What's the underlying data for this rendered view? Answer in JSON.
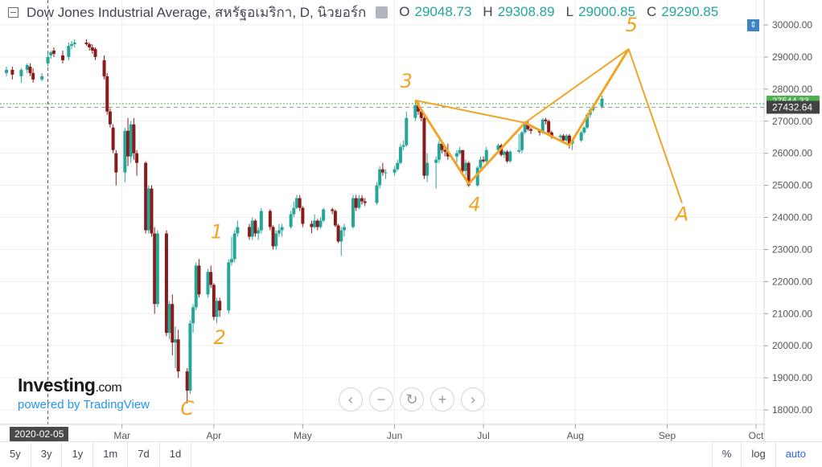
{
  "legend": {
    "title": "Dow Jones Industrial Average, สหรัฐอเมริกา, D, นิวยอร์ก",
    "open_key": "O",
    "open": "29048.73",
    "high_key": "H",
    "high": "29308.89",
    "low_key": "L",
    "low": "29000.85",
    "close_key": "C",
    "close": "29290.85"
  },
  "colors": {
    "up": "#26a69a",
    "down": "#8b1a1a",
    "drawing": "#f0a526",
    "axis_text": "#555555",
    "grid": "#eeeeee",
    "hline": "#4caf50",
    "dash": "#9e9e9e"
  },
  "price_badges": {
    "last": "27432.64",
    "hline": "27544.33"
  },
  "crosshair_date": "2020-02-05",
  "periods": [
    "5y",
    "3y",
    "1y",
    "1m",
    "7d",
    "1d"
  ],
  "bottom_right": {
    "percent": "%",
    "log": "log",
    "auto": "auto"
  },
  "nav_icons": [
    "chevron-left-icon",
    "zoom-out-icon",
    "reset-icon",
    "zoom-in-icon",
    "chevron-right-icon"
  ],
  "logo": {
    "brand": "Investing",
    "suffix": ".com",
    "powered": "powered by TradingView"
  },
  "chart_data": {
    "type": "candlestick",
    "y_ticks": [
      30000,
      29000,
      28000,
      27000,
      26000,
      25000,
      24000,
      23000,
      22000,
      21000,
      20000,
      19000,
      18000
    ],
    "y_tick_labels": [
      "30000.00",
      "29000.00",
      "28000.00",
      "27000.00",
      "26000.00",
      "25000.00",
      "24000.00",
      "23000.00",
      "22000.00",
      "21000.00",
      "20000.00",
      "19000.00",
      "18000.00"
    ],
    "ylim": [
      17500,
      30450
    ],
    "x_labels": [
      "Mar",
      "Apr",
      "May",
      "Jun",
      "Jul",
      "Aug",
      "Sep",
      "Oct"
    ],
    "x_label_dates": [
      "2020-03-01",
      "2020-04-01",
      "2020-05-01",
      "2020-06-01",
      "2020-07-01",
      "2020-08-01",
      "2020-09-01",
      "2020-10-01"
    ],
    "candles": [
      [
        "2020-01-22",
        28500,
        28700,
        28400,
        28600
      ],
      [
        "2020-01-24",
        28600,
        28700,
        28300,
        28450
      ],
      [
        "2020-01-27",
        28400,
        28650,
        28200,
        28600
      ],
      [
        "2020-01-29",
        28600,
        28800,
        28500,
        28750
      ],
      [
        "2020-01-30",
        28700,
        28800,
        28400,
        28500
      ],
      [
        "2020-01-31",
        28500,
        28650,
        28200,
        28300
      ],
      [
        "2020-02-03",
        28300,
        28500,
        28250,
        28400
      ],
      [
        "2020-02-05",
        28800,
        29100,
        28700,
        29000
      ],
      [
        "2020-02-06",
        29050,
        29200,
        28950,
        29150
      ],
      [
        "2020-02-07",
        29200,
        29300,
        29000,
        29100
      ],
      [
        "2020-02-10",
        29050,
        29200,
        28800,
        28900
      ],
      [
        "2020-02-12",
        29000,
        29450,
        28900,
        29350
      ],
      [
        "2020-02-13",
        29350,
        29500,
        29250,
        29400
      ],
      [
        "2020-02-14",
        29400,
        29550,
        29300,
        29450
      ],
      [
        "2020-02-18",
        29450,
        29550,
        29350,
        29400
      ],
      [
        "2020-02-19",
        29400,
        29450,
        29200,
        29300
      ],
      [
        "2020-02-20",
        29300,
        29400,
        29100,
        29200
      ],
      [
        "2020-02-21",
        29250,
        29300,
        28900,
        29000
      ],
      [
        "2020-02-24",
        28900,
        29050,
        28300,
        28400
      ],
      [
        "2020-02-25",
        28400,
        28500,
        27200,
        27300
      ],
      [
        "2020-02-26",
        27300,
        27400,
        26800,
        26900
      ],
      [
        "2020-02-27",
        26800,
        26900,
        26000,
        26100
      ],
      [
        "2020-02-28",
        26000,
        26100,
        25000,
        25400
      ],
      [
        "2020-03-02",
        25400,
        26800,
        25100,
        26700
      ],
      [
        "2020-03-03",
        26700,
        27100,
        25600,
        25900
      ],
      [
        "2020-03-04",
        25900,
        27000,
        25700,
        26900
      ],
      [
        "2020-03-05",
        26900,
        27100,
        25800,
        26000
      ],
      [
        "2020-03-06",
        26000,
        26100,
        25300,
        25700
      ],
      [
        "2020-03-09",
        25700,
        25750,
        23500,
        23600
      ],
      [
        "2020-03-10",
        23600,
        25000,
        23500,
        24900
      ],
      [
        "2020-03-11",
        24900,
        25000,
        23400,
        23500
      ],
      [
        "2020-03-12",
        23500,
        23700,
        21000,
        21300
      ],
      [
        "2020-03-13",
        21300,
        23600,
        21200,
        23500
      ],
      [
        "2020-03-16",
        23500,
        23600,
        20300,
        20400
      ],
      [
        "2020-03-17",
        20400,
        21400,
        20200,
        21300
      ],
      [
        "2020-03-18",
        21300,
        21600,
        19700,
        20100
      ],
      [
        "2020-03-19",
        20100,
        20600,
        19300,
        20200
      ],
      [
        "2020-03-20",
        20200,
        20500,
        19000,
        19200
      ],
      [
        "2020-03-23",
        19200,
        19300,
        18200,
        18600
      ],
      [
        "2020-03-24",
        18600,
        20800,
        18500,
        20700
      ],
      [
        "2020-03-25",
        20700,
        21300,
        20400,
        21200
      ],
      [
        "2020-03-26",
        21200,
        22600,
        21100,
        22500
      ],
      [
        "2020-03-27",
        22500,
        22700,
        21500,
        21600
      ],
      [
        "2020-03-30",
        21600,
        22400,
        21500,
        22300
      ],
      [
        "2020-03-31",
        22300,
        22500,
        21800,
        21900
      ],
      [
        "2020-04-01",
        21900,
        21950,
        20800,
        20900
      ],
      [
        "2020-04-02",
        20900,
        21500,
        20700,
        21400
      ],
      [
        "2020-04-03",
        21400,
        21500,
        20900,
        21100
      ],
      [
        "2020-04-06",
        21100,
        22700,
        21000,
        22600
      ],
      [
        "2020-04-07",
        22600,
        23400,
        22500,
        22700
      ],
      [
        "2020-04-08",
        22700,
        23600,
        22600,
        23500
      ],
      [
        "2020-04-09",
        23500,
        23900,
        23400,
        23700
      ],
      [
        "2020-04-13",
        23700,
        23800,
        23300,
        23400
      ],
      [
        "2020-04-14",
        23400,
        24000,
        23300,
        23900
      ],
      [
        "2020-04-15",
        23900,
        23950,
        23400,
        23500
      ],
      [
        "2020-04-16",
        23500,
        23700,
        23300,
        23600
      ],
      [
        "2020-04-17",
        23600,
        24300,
        23500,
        24200
      ],
      [
        "2020-04-20",
        24200,
        24250,
        23600,
        23700
      ],
      [
        "2020-04-21",
        23700,
        23750,
        23000,
        23100
      ],
      [
        "2020-04-22",
        23100,
        23600,
        23000,
        23500
      ],
      [
        "2020-04-23",
        23500,
        23800,
        23400,
        23600
      ],
      [
        "2020-04-24",
        23600,
        23800,
        23400,
        23700
      ],
      [
        "2020-04-27",
        23700,
        24200,
        23650,
        24100
      ],
      [
        "2020-04-28",
        24100,
        24500,
        24000,
        24300
      ],
      [
        "2020-04-29",
        24300,
        24700,
        24250,
        24600
      ],
      [
        "2020-04-30",
        24600,
        24700,
        24200,
        24300
      ],
      [
        "2020-05-01",
        24300,
        24350,
        23700,
        23800
      ],
      [
        "2020-05-04",
        23800,
        23900,
        23500,
        23700
      ],
      [
        "2020-05-05",
        23700,
        24100,
        23650,
        23900
      ],
      [
        "2020-05-06",
        23900,
        23950,
        23600,
        23700
      ],
      [
        "2020-05-07",
        23700,
        24000,
        23650,
        23900
      ],
      [
        "2020-05-08",
        23900,
        24300,
        23850,
        24250
      ],
      [
        "2020-05-11",
        24250,
        24300,
        24100,
        24200
      ],
      [
        "2020-05-12",
        24200,
        24250,
        23700,
        23750
      ],
      [
        "2020-05-13",
        23750,
        23800,
        23200,
        23250
      ],
      [
        "2020-05-14",
        23250,
        23700,
        22800,
        23600
      ],
      [
        "2020-05-15",
        23600,
        23800,
        23400,
        23700
      ],
      [
        "2020-05-18",
        23700,
        24700,
        23650,
        24600
      ],
      [
        "2020-05-19",
        24600,
        24700,
        24200,
        24300
      ],
      [
        "2020-05-20",
        24300,
        24700,
        24250,
        24600
      ],
      [
        "2020-05-21",
        24600,
        24700,
        24400,
        24500
      ],
      [
        "2020-05-22",
        24500,
        24600,
        24350,
        24450
      ],
      [
        "2020-05-26",
        24450,
        25100,
        24400,
        25000
      ],
      [
        "2020-05-27",
        25000,
        25600,
        24900,
        25500
      ],
      [
        "2020-05-28",
        25500,
        25700,
        25300,
        25400
      ],
      [
        "2020-05-29",
        25400,
        25500,
        25200,
        25400
      ],
      [
        "2020-06-01",
        25400,
        25600,
        25300,
        25500
      ],
      [
        "2020-06-02",
        25500,
        25800,
        25450,
        25700
      ],
      [
        "2020-06-03",
        25700,
        26300,
        25650,
        26200
      ],
      [
        "2020-06-04",
        26200,
        26400,
        26100,
        26250
      ],
      [
        "2020-06-05",
        26250,
        27300,
        26200,
        27100
      ],
      [
        "2020-06-08",
        27100,
        27600,
        27000,
        27500
      ],
      [
        "2020-06-09",
        27500,
        27600,
        27200,
        27300
      ],
      [
        "2020-06-10",
        27300,
        27400,
        27000,
        27100
      ],
      [
        "2020-06-11",
        27100,
        27150,
        25200,
        25300
      ],
      [
        "2020-06-12",
        25300,
        26000,
        25100,
        25700
      ],
      [
        "2020-06-15",
        25700,
        25900,
        24900,
        25800
      ],
      [
        "2020-06-16",
        25800,
        26400,
        25700,
        26300
      ],
      [
        "2020-06-17",
        26300,
        26350,
        26000,
        26100
      ],
      [
        "2020-06-18",
        26100,
        26200,
        25900,
        26050
      ],
      [
        "2020-06-19",
        26050,
        26300,
        25800,
        25900
      ],
      [
        "2020-06-22",
        25900,
        26100,
        25700,
        26000
      ],
      [
        "2020-06-23",
        26000,
        26200,
        25950,
        26100
      ],
      [
        "2020-06-24",
        26100,
        26100,
        25400,
        25450
      ],
      [
        "2020-06-25",
        25450,
        25800,
        25300,
        25700
      ],
      [
        "2020-06-26",
        25700,
        25750,
        24950,
        25000
      ],
      [
        "2020-06-29",
        25000,
        25600,
        24950,
        25550
      ],
      [
        "2020-06-30",
        25550,
        25900,
        25500,
        25800
      ],
      [
        "2020-07-01",
        25800,
        25900,
        25700,
        25750
      ],
      [
        "2020-07-02",
        25750,
        26200,
        25700,
        26100
      ],
      [
        "2020-07-06",
        26100,
        26300,
        26050,
        26250
      ],
      [
        "2020-07-07",
        26250,
        26300,
        25900,
        25950
      ],
      [
        "2020-07-08",
        25950,
        26100,
        25850,
        26050
      ],
      [
        "2020-07-09",
        26050,
        26100,
        25700,
        25750
      ],
      [
        "2020-07-10",
        25750,
        26100,
        25700,
        26050
      ],
      [
        "2020-07-13",
        26050,
        26600,
        26000,
        26100
      ],
      [
        "2020-07-14",
        26100,
        26700,
        26000,
        26650
      ],
      [
        "2020-07-15",
        26650,
        27000,
        26600,
        26900
      ],
      [
        "2020-07-16",
        26900,
        27000,
        26700,
        26750
      ],
      [
        "2020-07-17",
        26750,
        26800,
        26600,
        26700
      ],
      [
        "2020-07-20",
        26700,
        26750,
        26550,
        26650
      ],
      [
        "2020-07-21",
        26650,
        27100,
        26600,
        27050
      ],
      [
        "2020-07-22",
        27050,
        27100,
        26900,
        27000
      ],
      [
        "2020-07-23",
        27000,
        27050,
        26600,
        26650
      ],
      [
        "2020-07-24",
        26650,
        26700,
        26450,
        26500
      ],
      [
        "2020-07-27",
        26500,
        26600,
        26400,
        26550
      ],
      [
        "2020-07-28",
        26550,
        26600,
        26350,
        26400
      ],
      [
        "2020-07-29",
        26400,
        26600,
        26350,
        26550
      ],
      [
        "2020-07-30",
        26550,
        26600,
        26150,
        26300
      ],
      [
        "2020-07-31",
        26300,
        26450,
        26100,
        26400
      ],
      [
        "2020-08-03",
        26400,
        26700,
        26350,
        26650
      ],
      [
        "2020-08-04",
        26650,
        26850,
        26600,
        26800
      ],
      [
        "2020-08-05",
        26800,
        27250,
        26750,
        27200
      ],
      [
        "2020-08-06",
        27200,
        27400,
        27100,
        27350
      ],
      [
        "2020-08-07",
        27350,
        27500,
        27300,
        27450
      ],
      [
        "2020-08-10",
        27450,
        27800,
        27400,
        27700
      ]
    ]
  },
  "annotations": {
    "labels": [
      "1",
      "2",
      "3",
      "4",
      "5",
      "C",
      "A"
    ]
  }
}
